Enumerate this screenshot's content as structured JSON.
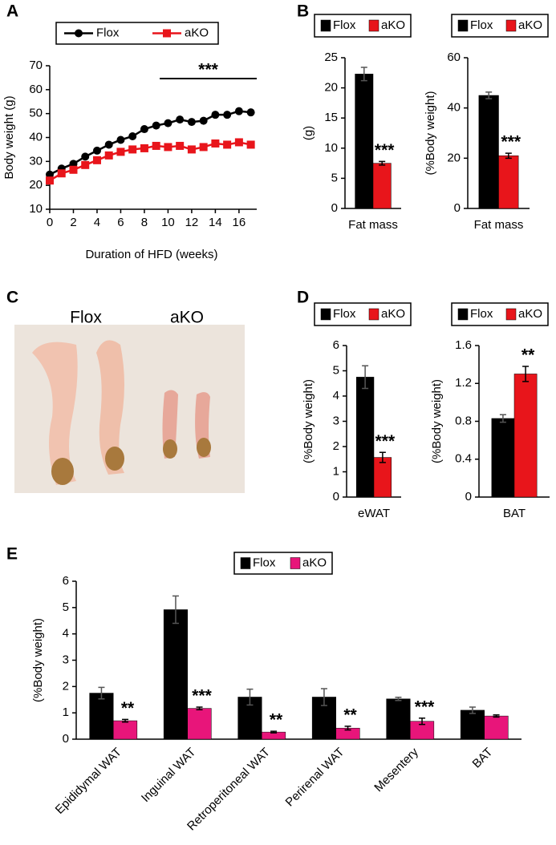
{
  "chart_data": [
    {
      "type": "line",
      "panel": "A",
      "ylabel": "Body weight (g)",
      "xlabel": "Duration of HFD (weeks)",
      "x": [
        0,
        1,
        2,
        3,
        4,
        5,
        6,
        7,
        8,
        9,
        10,
        11,
        12,
        13,
        14,
        15,
        16,
        17
      ],
      "series": [
        {
          "name": "Flox",
          "color": "#000000",
          "marker": "circle",
          "values": [
            24.5,
            27,
            29,
            32,
            34.5,
            37,
            39,
            40.5,
            43.5,
            45,
            46,
            47.5,
            46.5,
            47,
            49.5,
            49.5,
            51,
            50.5
          ]
        },
        {
          "name": "aKO",
          "color": "#e8151b",
          "marker": "square",
          "values": [
            22,
            25,
            26.5,
            28.5,
            30.5,
            32.5,
            34,
            35,
            35.5,
            36.5,
            36,
            36.5,
            35,
            36,
            37.5,
            37,
            38,
            37
          ]
        }
      ],
      "xlim": [
        0,
        17.5
      ],
      "xticks": [
        0,
        2,
        4,
        6,
        8,
        10,
        12,
        14,
        16
      ],
      "ylim": [
        10,
        70
      ],
      "yticks": [
        10,
        20,
        30,
        40,
        50,
        60,
        70
      ],
      "annotations": [
        {
          "text": "***",
          "x": [
            9.3,
            17.5
          ]
        }
      ]
    },
    {
      "type": "bar",
      "panel": "B",
      "ylabel": "(g)",
      "categories": [
        "Fat mass"
      ],
      "series": [
        {
          "name": "Flox",
          "color": "#000000",
          "values": [
            22.3
          ],
          "errors": [
            1.1
          ]
        },
        {
          "name": "aKO",
          "color": "#e8151b",
          "values": [
            7.5
          ],
          "errors": [
            0.3
          ],
          "significance": [
            "***"
          ]
        }
      ],
      "ylim": [
        0,
        25
      ],
      "yticks": [
        0,
        5,
        10,
        15,
        20,
        25
      ]
    },
    {
      "type": "bar",
      "ylabel": "(%Body weight)",
      "categories": [
        "Fat mass"
      ],
      "series": [
        {
          "name": "Flox",
          "color": "#000000",
          "values": [
            45
          ],
          "errors": [
            1.3
          ]
        },
        {
          "name": "aKO",
          "color": "#e8151b",
          "values": [
            21
          ],
          "errors": [
            1
          ],
          "significance": [
            "***"
          ]
        }
      ],
      "ylim": [
        0,
        60
      ],
      "yticks": [
        0,
        20,
        40,
        60
      ]
    },
    {
      "type": "bar",
      "panel": "D",
      "ylabel": "(%Body weight)",
      "categories": [
        "eWAT"
      ],
      "series": [
        {
          "name": "Flox",
          "color": "#000000",
          "values": [
            4.75
          ],
          "errors": [
            0.45
          ]
        },
        {
          "name": "aKO",
          "color": "#e8151b",
          "values": [
            1.57
          ],
          "errors": [
            0.2
          ],
          "significance": [
            "***"
          ]
        }
      ],
      "ylim": [
        0,
        6
      ],
      "yticks": [
        0,
        1,
        2,
        3,
        4,
        5,
        6
      ]
    },
    {
      "type": "bar",
      "ylabel": "(%Body weight)",
      "categories": [
        "BAT"
      ],
      "series": [
        {
          "name": "Flox",
          "color": "#000000",
          "values": [
            0.83
          ],
          "errors": [
            0.04
          ]
        },
        {
          "name": "aKO",
          "color": "#e8151b",
          "values": [
            1.3
          ],
          "errors": [
            0.08
          ],
          "significance": [
            "**"
          ]
        }
      ],
      "ylim": [
        0,
        1.6
      ],
      "yticks": [
        0,
        0.4,
        0.8,
        1.2,
        1.6
      ]
    },
    {
      "type": "bar",
      "panel": "E",
      "ylabel": "(%Body weight)",
      "categories": [
        "Epididymal WAT",
        "Inguinal WAT",
        "Retroperitoneal WAT",
        "Perirenal WAT",
        "Mesentery",
        "BAT"
      ],
      "series": [
        {
          "name": "Flox",
          "color": "#000000",
          "values": [
            1.75,
            4.92,
            1.6,
            1.6,
            1.53,
            1.1
          ],
          "errors": [
            0.22,
            0.52,
            0.3,
            0.32,
            0.06,
            0.12
          ]
        },
        {
          "name": "aKO",
          "color": "#e8157a",
          "values": [
            0.7,
            1.17,
            0.27,
            0.42,
            0.68,
            0.88
          ],
          "errors": [
            0.05,
            0.05,
            0.03,
            0.07,
            0.12,
            0.04
          ],
          "significance": [
            "**",
            "***",
            "**",
            "**",
            "***",
            null
          ]
        }
      ],
      "ylim": [
        0,
        6
      ],
      "yticks": [
        0,
        1,
        2,
        3,
        4,
        5,
        6
      ]
    }
  ],
  "photo": {
    "panel": "C",
    "labels": [
      "Flox",
      "aKO"
    ]
  }
}
